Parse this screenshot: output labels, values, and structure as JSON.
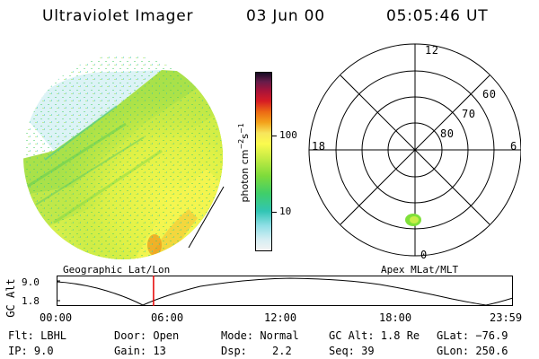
{
  "header": {
    "title": "Ultraviolet Imager",
    "date": "03 Jun 00",
    "time": "05:05:46 UT"
  },
  "colorbar": {
    "units_prefix": "photon cm",
    "units_exp1": "−2",
    "units_mid": "s",
    "units_exp2": "−1",
    "ticks": [
      "100",
      "10"
    ],
    "tick_values": [
      100,
      10
    ],
    "scale": "log",
    "range": [
      2.5,
      400
    ]
  },
  "polar": {
    "mlt_labels": {
      "top": "12",
      "right": "6",
      "bottom": "0",
      "left": "18"
    },
    "lat_labels": [
      "60",
      "70",
      "80"
    ],
    "aurora_color": "#7fe03a"
  },
  "graph": {
    "left_title": "Geographic Lat/Lon",
    "right_title": "Apex MLat/MLT",
    "y_title": "GC Alt",
    "y_ticks": [
      "9.0",
      "1.8"
    ],
    "x_ticks": [
      "00:00",
      "06:00",
      "12:00",
      "18:00",
      "23:59"
    ],
    "current_time_color": "#e60000",
    "current_time_hours": 5.096
  },
  "info": {
    "filter": "Flt: LBHL",
    "ip": "IP:  9.0",
    "door": "Door: Open",
    "gain": "Gain: 13",
    "mode": "Mode: Normal",
    "dsp_label": "Dsp:",
    "dsp_value": "2.2",
    "gc_alt": "GC Alt: 1.8 Re",
    "seq": "Seq: 39",
    "glat": "GLat: −76.9",
    "glon": "GLon: 250.6"
  }
}
